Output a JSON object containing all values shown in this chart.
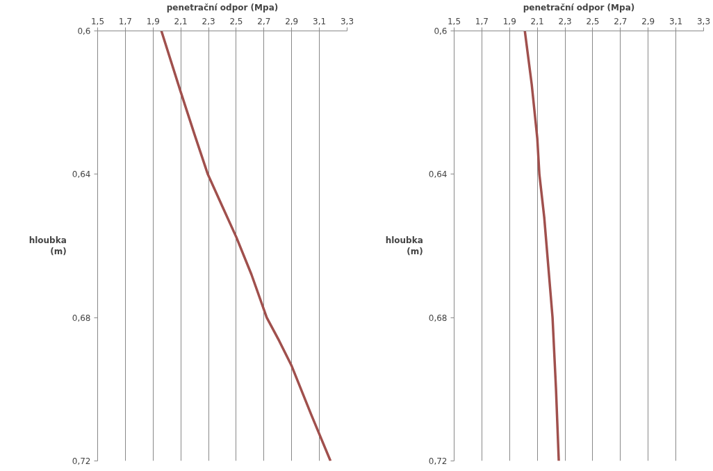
{
  "chart_data": [
    {
      "type": "line",
      "xlabel": "penetrační odpor (Mpa)",
      "ylabel": "hloubka\n(m)",
      "x": [
        1.96,
        2.095,
        2.2,
        2.295,
        2.4,
        2.5,
        2.61,
        2.72,
        2.81,
        2.9,
        3.04,
        3.18
      ],
      "series": [
        {
          "color": "#a0504d",
          "values": [
            0.6,
            0.6165,
            0.629,
            0.64,
            0.649,
            0.6575,
            0.668,
            0.68,
            0.6865,
            0.6935,
            0.707,
            0.72
          ]
        }
      ],
      "xlim": [
        1.5,
        3.3
      ],
      "xticks": [
        {
          "value": 1.5,
          "label": "1,5"
        },
        {
          "value": 1.7,
          "label": "1,7"
        },
        {
          "value": 1.9,
          "label": "1,9"
        },
        {
          "value": 2.1,
          "label": "2,1"
        },
        {
          "value": 2.3,
          "label": "2,3"
        },
        {
          "value": 2.5,
          "label": "2,5"
        },
        {
          "value": 2.7,
          "label": "2,7"
        },
        {
          "value": 2.9,
          "label": "2,9"
        },
        {
          "value": 3.1,
          "label": "3,1"
        },
        {
          "value": 3.3,
          "label": "3,3"
        }
      ],
      "ylim": [
        0.72,
        0.6
      ],
      "yticks": [
        {
          "value": 0.6,
          "label": "0,6"
        },
        {
          "value": 0.64,
          "label": "0,64"
        },
        {
          "value": 0.68,
          "label": "0,68"
        },
        {
          "value": 0.72,
          "label": "0,72"
        }
      ],
      "grid": "x",
      "marker": "none",
      "line_style": "solid"
    },
    {
      "type": "line",
      "xlabel": "penetrační odpor (Mpa)",
      "ylabel": "hloubka\n(m)",
      "x": [
        2.01,
        2.06,
        2.1,
        2.115,
        2.15,
        2.18,
        2.21,
        2.235,
        2.255
      ],
      "series": [
        {
          "color": "#a0504d",
          "values": [
            0.6,
            0.615,
            0.63,
            0.64,
            0.652,
            0.666,
            0.68,
            0.7,
            0.72
          ]
        }
      ],
      "xlim": [
        1.5,
        3.3
      ],
      "xticks": [
        {
          "value": 1.5,
          "label": "1,5"
        },
        {
          "value": 1.7,
          "label": "1,7"
        },
        {
          "value": 1.9,
          "label": "1,9"
        },
        {
          "value": 2.1,
          "label": "2,1"
        },
        {
          "value": 2.3,
          "label": "2,3"
        },
        {
          "value": 2.5,
          "label": "2,5"
        },
        {
          "value": 2.7,
          "label": "2,7"
        },
        {
          "value": 2.9,
          "label": "2,9"
        },
        {
          "value": 3.1,
          "label": "3,1"
        },
        {
          "value": 3.3,
          "label": "3,3"
        }
      ],
      "ylim": [
        0.72,
        0.6
      ],
      "yticks": [
        {
          "value": 0.6,
          "label": "0,6"
        },
        {
          "value": 0.64,
          "label": "0,64"
        },
        {
          "value": 0.68,
          "label": "0,68"
        },
        {
          "value": 0.72,
          "label": "0,72"
        }
      ],
      "grid": "x",
      "marker": "none",
      "line_style": "solid"
    }
  ]
}
